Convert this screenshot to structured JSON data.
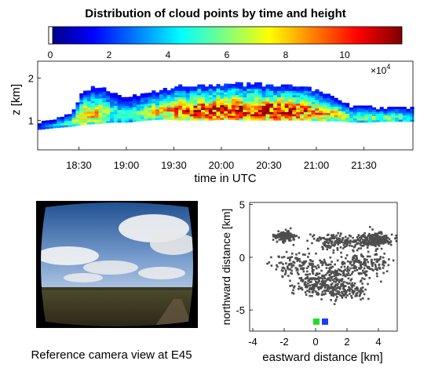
{
  "figure": {
    "title": "Distribution of cloud points by time and height",
    "camera_caption": "Reference camera view at E45"
  },
  "colorbar": {
    "ticks": [
      "0",
      "2",
      "4",
      "6",
      "8",
      "10"
    ],
    "tick_values": [
      0,
      2,
      4,
      6,
      8,
      10
    ],
    "range": [
      0,
      12
    ],
    "multiplier_base": "×10",
    "multiplier_exp": "4",
    "colors": [
      "#00007f",
      "#0000ff",
      "#007fff",
      "#00ffff",
      "#7fff7f",
      "#ffff00",
      "#ff7f00",
      "#ff0000",
      "#7f0000"
    ]
  },
  "chart_data": [
    {
      "type": "heatmap",
      "title": "Distribution of cloud points by time and height",
      "xlabel": "time in UTC",
      "ylabel": "z [km]",
      "x_tick_labels": [
        "18:30",
        "19:00",
        "19:30",
        "20:00",
        "20:30",
        "21:00",
        "21:30"
      ],
      "x_tick_values_min": [
        1110,
        1140,
        1170,
        1200,
        1230,
        1260,
        1290
      ],
      "xlim_min": [
        1084,
        1321
      ],
      "y_tick_labels": [
        "1",
        "2"
      ],
      "y_tick_values": [
        1,
        2
      ],
      "ylim": [
        0.3,
        2.4
      ],
      "color_units": "counts (×10^4)",
      "profile": {
        "time_min": [
          1084,
          1094,
          1104,
          1112,
          1122,
          1130,
          1140,
          1152,
          1162,
          1172,
          1182,
          1192,
          1202,
          1212,
          1222,
          1232,
          1242,
          1252,
          1262,
          1272,
          1282,
          1292,
          1302,
          1312,
          1320
        ],
        "base_km": [
          0.78,
          0.82,
          0.85,
          0.9,
          0.92,
          0.95,
          0.95,
          1.0,
          1.02,
          1.0,
          1.0,
          1.0,
          1.02,
          1.0,
          1.0,
          1.0,
          1.0,
          1.0,
          0.98,
          0.98,
          0.95,
          0.95,
          0.97,
          0.97,
          0.97
        ],
        "top_km": [
          0.92,
          1.0,
          1.15,
          1.7,
          1.78,
          1.65,
          1.5,
          1.65,
          1.7,
          1.78,
          1.8,
          1.82,
          1.84,
          1.84,
          1.83,
          1.8,
          1.82,
          1.78,
          1.65,
          1.45,
          1.3,
          1.28,
          1.25,
          1.28,
          1.3
        ],
        "peak_count_1e4": [
          1.5,
          3,
          5,
          8,
          7,
          5,
          4,
          6,
          8,
          9,
          10,
          10,
          11,
          10,
          10,
          11,
          10,
          9,
          8,
          7,
          5,
          5,
          6,
          5,
          4
        ]
      }
    },
    {
      "type": "scatter",
      "xlabel": "eastward distance [km]",
      "ylabel": "northward distance [km]",
      "x_ticks": [
        -4,
        -2,
        0,
        2,
        4
      ],
      "y_ticks": [
        -5,
        0,
        5
      ],
      "xlim": [
        -4.2,
        5.2
      ],
      "ylim": [
        -7.0,
        5.2
      ],
      "point_color": "#4d4d4d",
      "clusters": [
        {
          "cx": -2.0,
          "cy": 2.0,
          "sx": 0.35,
          "sy": 0.25
        },
        {
          "cx": 1.2,
          "cy": 1.5,
          "sx": 0.7,
          "sy": 0.35
        },
        {
          "cx": 3.4,
          "cy": 1.5,
          "sx": 0.6,
          "sy": 0.3
        },
        {
          "cx": -1.0,
          "cy": -0.8,
          "sx": 1.0,
          "sy": 0.6
        },
        {
          "cx": 1.5,
          "cy": -1.5,
          "sx": 0.9,
          "sy": 0.7
        },
        {
          "cx": 3.2,
          "cy": -0.5,
          "sx": 0.8,
          "sy": 0.6
        },
        {
          "cx": 0.0,
          "cy": -2.6,
          "sx": 0.7,
          "sy": 0.5
        },
        {
          "cx": 1.8,
          "cy": -3.2,
          "sx": 0.9,
          "sy": 0.4
        },
        {
          "cx": 4.0,
          "cy": 1.8,
          "sx": 0.4,
          "sy": 0.3
        }
      ],
      "markers": [
        {
          "x": 0.05,
          "y": -6.1,
          "color": "#22dd22"
        },
        {
          "x": 0.6,
          "y": -6.1,
          "color": "#1a3aff"
        }
      ]
    }
  ]
}
